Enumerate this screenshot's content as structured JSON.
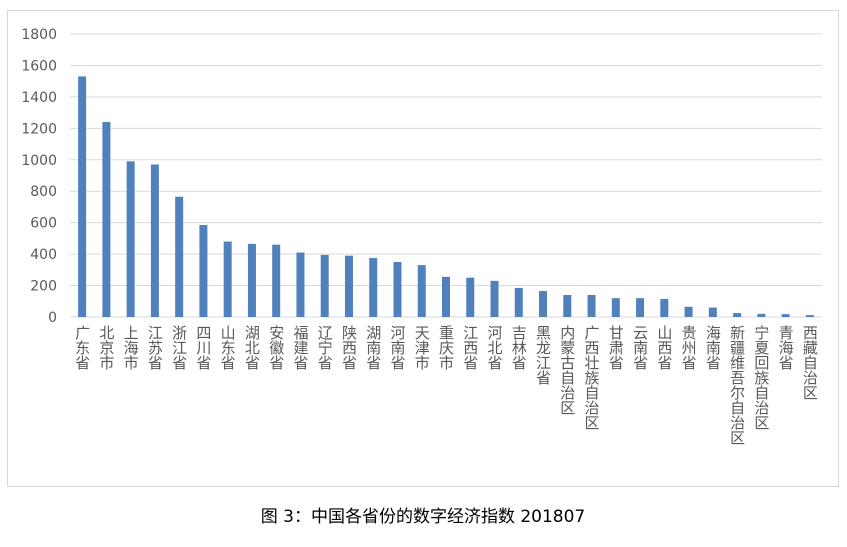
{
  "chart_data": {
    "type": "bar",
    "categories": [
      "广东省",
      "北京市",
      "上海市",
      "江苏省",
      "浙江省",
      "四川省",
      "山东省",
      "湖北省",
      "安徽省",
      "福建省",
      "辽宁省",
      "陕西省",
      "湖南省",
      "河南省",
      "天津市",
      "重庆市",
      "江西省",
      "河北省",
      "吉林省",
      "黑龙江省",
      "内蒙古自治区",
      "广西壮族自治区",
      "甘肃省",
      "云南省",
      "山西省",
      "贵州省",
      "海南省",
      "新疆维吾尔自治区",
      "宁夏回族自治区",
      "青海省",
      "西藏自治区"
    ],
    "values": [
      1530,
      1240,
      990,
      970,
      765,
      585,
      480,
      465,
      460,
      410,
      395,
      390,
      375,
      350,
      330,
      255,
      250,
      230,
      185,
      165,
      140,
      140,
      120,
      120,
      115,
      65,
      60,
      25,
      20,
      18,
      12
    ],
    "color": "#4f81bd",
    "ylim": [
      0,
      1800
    ],
    "yticks": [
      0,
      200,
      400,
      600,
      800,
      1000,
      1200,
      1400,
      1600,
      1800
    ],
    "grid": true
  },
  "caption": "图 3：中国各省份的数字经济指数 201807"
}
